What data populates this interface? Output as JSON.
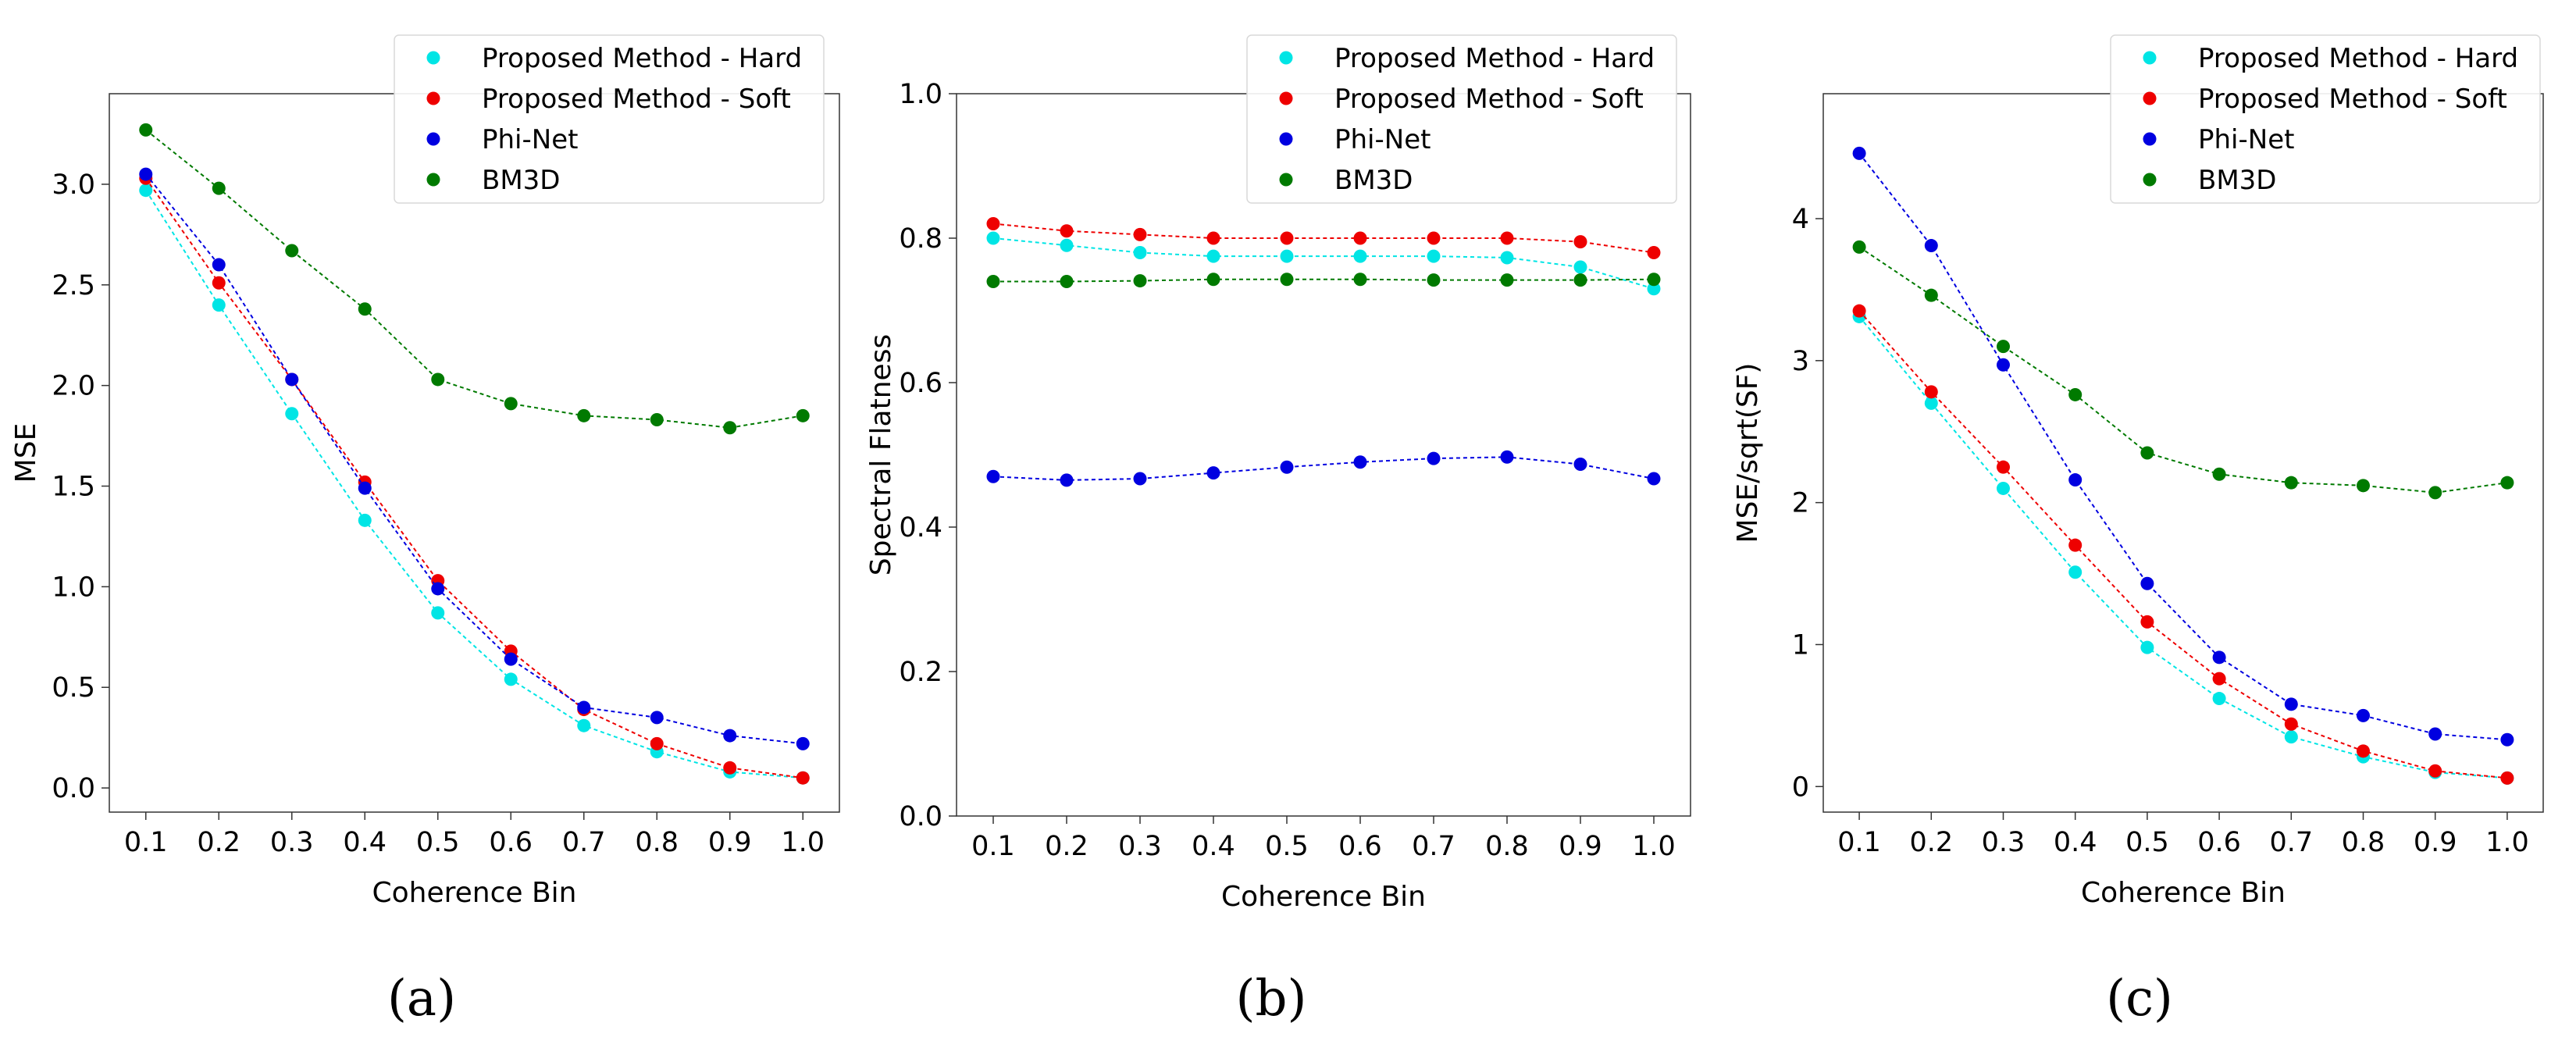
{
  "chart_data": [
    {
      "type": "line",
      "panel_label": "(a)",
      "title": "",
      "xlabel": "Coherence Bin",
      "ylabel": "MSE",
      "categories": [
        "0.1",
        "0.2",
        "0.3",
        "0.4",
        "0.5",
        "0.6",
        "0.7",
        "0.8",
        "0.9",
        "1.0"
      ],
      "xlim": [
        0.05,
        1.05
      ],
      "ylim": [
        -0.12,
        3.45
      ],
      "yticks": [
        "0.0",
        "0.5",
        "1.0",
        "1.5",
        "2.0",
        "2.5",
        "3.0"
      ],
      "legend_position": "top-right",
      "series": [
        {
          "name": "Proposed Method - Hard",
          "color": "#00e5e5",
          "values": [
            2.97,
            2.4,
            1.86,
            1.33,
            0.87,
            0.54,
            0.31,
            0.18,
            0.08,
            0.05
          ]
        },
        {
          "name": "Proposed Method - Soft",
          "color": "#ee0000",
          "values": [
            3.03,
            2.51,
            2.03,
            1.52,
            1.03,
            0.68,
            0.39,
            0.22,
            0.1,
            0.05
          ]
        },
        {
          "name": "Phi-Net",
          "color": "#0000e0",
          "values": [
            3.05,
            2.6,
            2.03,
            1.49,
            0.99,
            0.64,
            0.4,
            0.35,
            0.26,
            0.22
          ]
        },
        {
          "name": "BM3D",
          "color": "#007a00",
          "values": [
            3.27,
            2.98,
            2.67,
            2.38,
            2.03,
            1.91,
            1.85,
            1.83,
            1.79,
            1.85
          ]
        }
      ]
    },
    {
      "type": "line",
      "panel_label": "(b)",
      "title": "",
      "xlabel": "Coherence Bin",
      "ylabel": "Spectral Flatness",
      "categories": [
        "0.1",
        "0.2",
        "0.3",
        "0.4",
        "0.5",
        "0.6",
        "0.7",
        "0.8",
        "0.9",
        "1.0"
      ],
      "xlim": [
        0.05,
        1.05
      ],
      "ylim": [
        0.0,
        1.0
      ],
      "yticks": [
        "0.0",
        "0.2",
        "0.4",
        "0.6",
        "0.8",
        "1.0"
      ],
      "legend_position": "top-right",
      "series": [
        {
          "name": "Proposed Method - Hard",
          "color": "#00e5e5",
          "values": [
            0.8,
            0.79,
            0.78,
            0.775,
            0.775,
            0.775,
            0.775,
            0.773,
            0.76,
            0.73
          ]
        },
        {
          "name": "Proposed Method - Soft",
          "color": "#ee0000",
          "values": [
            0.82,
            0.81,
            0.805,
            0.8,
            0.8,
            0.8,
            0.8,
            0.8,
            0.795,
            0.78
          ]
        },
        {
          "name": "Phi-Net",
          "color": "#0000e0",
          "values": [
            0.47,
            0.465,
            0.467,
            0.475,
            0.483,
            0.49,
            0.495,
            0.497,
            0.487,
            0.467
          ]
        },
        {
          "name": "BM3D",
          "color": "#007a00",
          "values": [
            0.74,
            0.74,
            0.741,
            0.743,
            0.743,
            0.743,
            0.742,
            0.742,
            0.742,
            0.743
          ]
        }
      ]
    },
    {
      "type": "line",
      "panel_label": "(c)",
      "title": "",
      "xlabel": "Coherence Bin",
      "ylabel": "MSE/sqrt(SF)",
      "categories": [
        "0.1",
        "0.2",
        "0.3",
        "0.4",
        "0.5",
        "0.6",
        "0.7",
        "0.8",
        "0.9",
        "1.0"
      ],
      "xlim": [
        0.05,
        1.05
      ],
      "ylim": [
        -0.18,
        4.88
      ],
      "yticks": [
        "0",
        "1",
        "2",
        "3",
        "4"
      ],
      "legend_position": "top-right",
      "series": [
        {
          "name": "Proposed Method - Hard",
          "color": "#00e5e5",
          "values": [
            3.31,
            2.7,
            2.1,
            1.51,
            0.98,
            0.62,
            0.35,
            0.21,
            0.1,
            0.06
          ]
        },
        {
          "name": "Proposed Method - Soft",
          "color": "#ee0000",
          "values": [
            3.35,
            2.78,
            2.25,
            1.7,
            1.16,
            0.76,
            0.44,
            0.25,
            0.11,
            0.06
          ]
        },
        {
          "name": "Phi-Net",
          "color": "#0000e0",
          "values": [
            4.46,
            3.81,
            2.97,
            2.16,
            1.43,
            0.91,
            0.58,
            0.5,
            0.37,
            0.33
          ]
        },
        {
          "name": "BM3D",
          "color": "#007a00",
          "values": [
            3.8,
            3.46,
            3.1,
            2.76,
            2.35,
            2.2,
            2.14,
            2.12,
            2.07,
            2.14
          ]
        }
      ]
    }
  ]
}
